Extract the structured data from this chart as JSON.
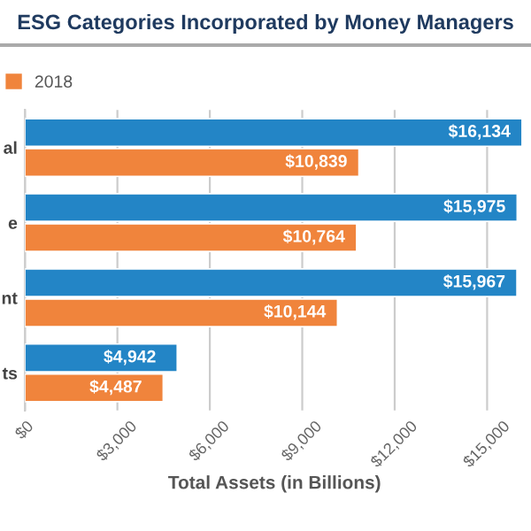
{
  "chart_data": {
    "type": "bar",
    "orientation": "horizontal",
    "title": "ESG Categories Incorporated by Money Managers",
    "xlabel": "Total Assets (in Billions)",
    "categories": [
      "al",
      "e",
      "nt",
      "ts"
    ],
    "series": [
      {
        "color": "#2385c6",
        "values": [
          16134,
          15975,
          15967,
          4942
        ],
        "value_labels": [
          "$16,134",
          "$15,975",
          "$15,967",
          "$4,942"
        ]
      },
      {
        "name": "2018",
        "color": "#f0843c",
        "values": [
          10839,
          10764,
          10144,
          4487
        ],
        "value_labels": [
          "$10,839",
          "$10,764",
          "$10,144",
          "$4,487"
        ]
      }
    ],
    "xlim": [
      0,
      16200
    ],
    "xticks": [
      {
        "value": 0,
        "label": "$0"
      },
      {
        "value": 3000,
        "label": "$3,000"
      },
      {
        "value": 6000,
        "label": "$6,000"
      },
      {
        "value": 9000,
        "label": "$9,000"
      },
      {
        "value": 12000,
        "label": "$12,000"
      },
      {
        "value": 15000,
        "label": "$15,000"
      }
    ],
    "grid": "x",
    "legend": "top left"
  }
}
